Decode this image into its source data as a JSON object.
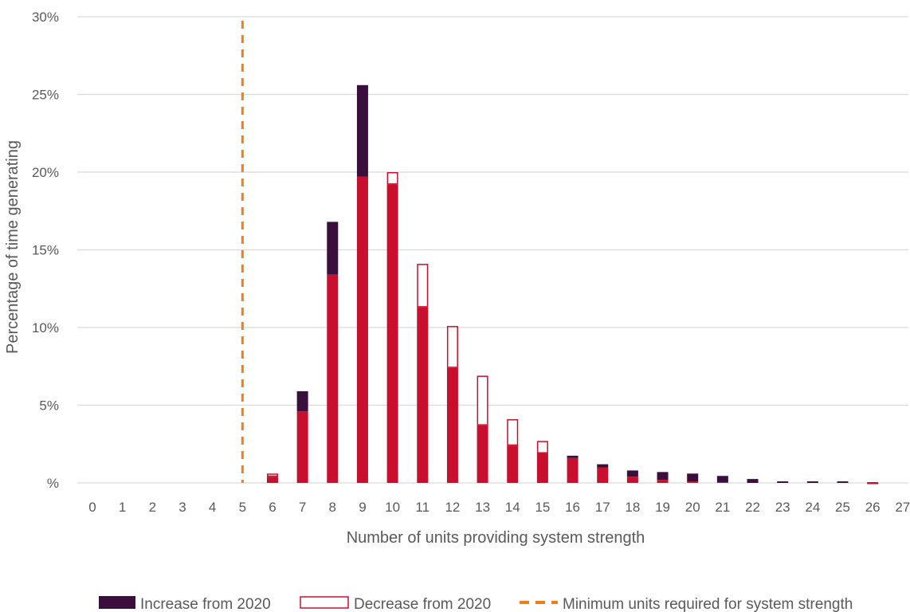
{
  "chart_data": {
    "type": "bar",
    "stacked": true,
    "title": "",
    "xlabel": "Number of units providing system strength",
    "ylabel": "Percentage of time generating",
    "categories": [
      "0",
      "1",
      "2",
      "3",
      "4",
      "5",
      "6",
      "7",
      "8",
      "9",
      "10",
      "11",
      "12",
      "13",
      "14",
      "15",
      "16",
      "17",
      "18",
      "19",
      "20",
      "21",
      "22",
      "23",
      "24",
      "25",
      "26",
      "27"
    ],
    "y_ticks": [
      "%",
      "5%",
      "10%",
      "15%",
      "20%",
      "25%",
      "30%"
    ],
    "ylim": [
      0,
      30
    ],
    "grid": true,
    "series": [
      {
        "name": "",
        "style": "solid-base",
        "values": [
          0,
          0,
          0,
          0,
          0,
          0,
          0.4,
          4.6,
          13.4,
          19.7,
          19.2,
          11.3,
          7.4,
          3.7,
          2.4,
          1.9,
          1.6,
          1.0,
          0.4,
          0.2,
          0.1,
          0.05,
          0,
          0,
          0,
          0,
          0,
          0
        ]
      },
      {
        "name": "Increase from 2020",
        "style": "solid-top",
        "values": [
          0,
          0,
          0,
          0,
          0,
          0,
          0,
          1.3,
          3.4,
          5.9,
          0,
          0,
          0,
          0,
          0,
          0,
          0.15,
          0.2,
          0.4,
          0.5,
          0.5,
          0.4,
          0.25,
          0.1,
          0.1,
          0.1,
          0,
          0
        ]
      },
      {
        "name": "Decrease from 2020",
        "style": "outline-top",
        "values": [
          0,
          0,
          0,
          0,
          0,
          0,
          0.2,
          0,
          0,
          0,
          0.8,
          2.8,
          2.7,
          3.2,
          1.7,
          0.8,
          0,
          0,
          0,
          0,
          0,
          0,
          0,
          0,
          0,
          0,
          0.05,
          0
        ]
      }
    ],
    "reference_line": {
      "name": "Minimum units required for system strength",
      "x": 5,
      "style": "dashed"
    },
    "legend": {
      "placement": "bottom-center",
      "items": [
        {
          "label": "Increase from 2020"
        },
        {
          "label": "Decrease from 2020"
        },
        {
          "label": "Minimum units required for system strength"
        }
      ]
    },
    "colors": {
      "base": "#c8102e",
      "increase": "#3b0f3d",
      "decrease_outline": "#c8102e",
      "reference": "#f07d19",
      "grid": "#d9d9d9",
      "text": "#595959"
    }
  }
}
